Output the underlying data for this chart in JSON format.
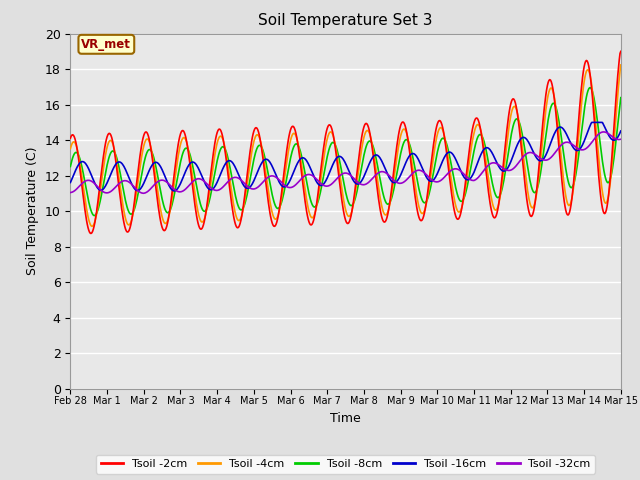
{
  "title": "Soil Temperature Set 3",
  "xlabel": "Time",
  "ylabel": "Soil Temperature (C)",
  "ylim": [
    0,
    20
  ],
  "yticks": [
    0,
    2,
    4,
    6,
    8,
    10,
    12,
    14,
    16,
    18,
    20
  ],
  "bg_color": "#e0e0e0",
  "plot_bg_color": "#e8e8e8",
  "annotation_text": "VR_met",
  "annotation_bg": "#ffffcc",
  "annotation_border": "#996600",
  "annotation_text_color": "#990000",
  "series": {
    "Tsoil -2cm": {
      "color": "#ff0000",
      "lw": 1.2
    },
    "Tsoil -4cm": {
      "color": "#ff9900",
      "lw": 1.2
    },
    "Tsoil -8cm": {
      "color": "#00cc00",
      "lw": 1.2
    },
    "Tsoil -16cm": {
      "color": "#0000cc",
      "lw": 1.2
    },
    "Tsoil -32cm": {
      "color": "#9900cc",
      "lw": 1.2
    }
  },
  "x_ticklabels": [
    "Feb 28",
    "Mar 1",
    "Mar 2",
    "Mar 3",
    "Mar 4",
    "Mar 5",
    "Mar 6",
    "Mar 7",
    "Mar 8",
    "Mar 9",
    "Mar 10",
    "Mar 11",
    "Mar 12",
    "Mar 13",
    "Mar 14",
    "Mar 15"
  ],
  "x_ticks": [
    0,
    1,
    2,
    3,
    4,
    5,
    6,
    7,
    8,
    9,
    10,
    11,
    12,
    13,
    14,
    15
  ],
  "figsize": [
    6.4,
    4.8
  ],
  "dpi": 100
}
